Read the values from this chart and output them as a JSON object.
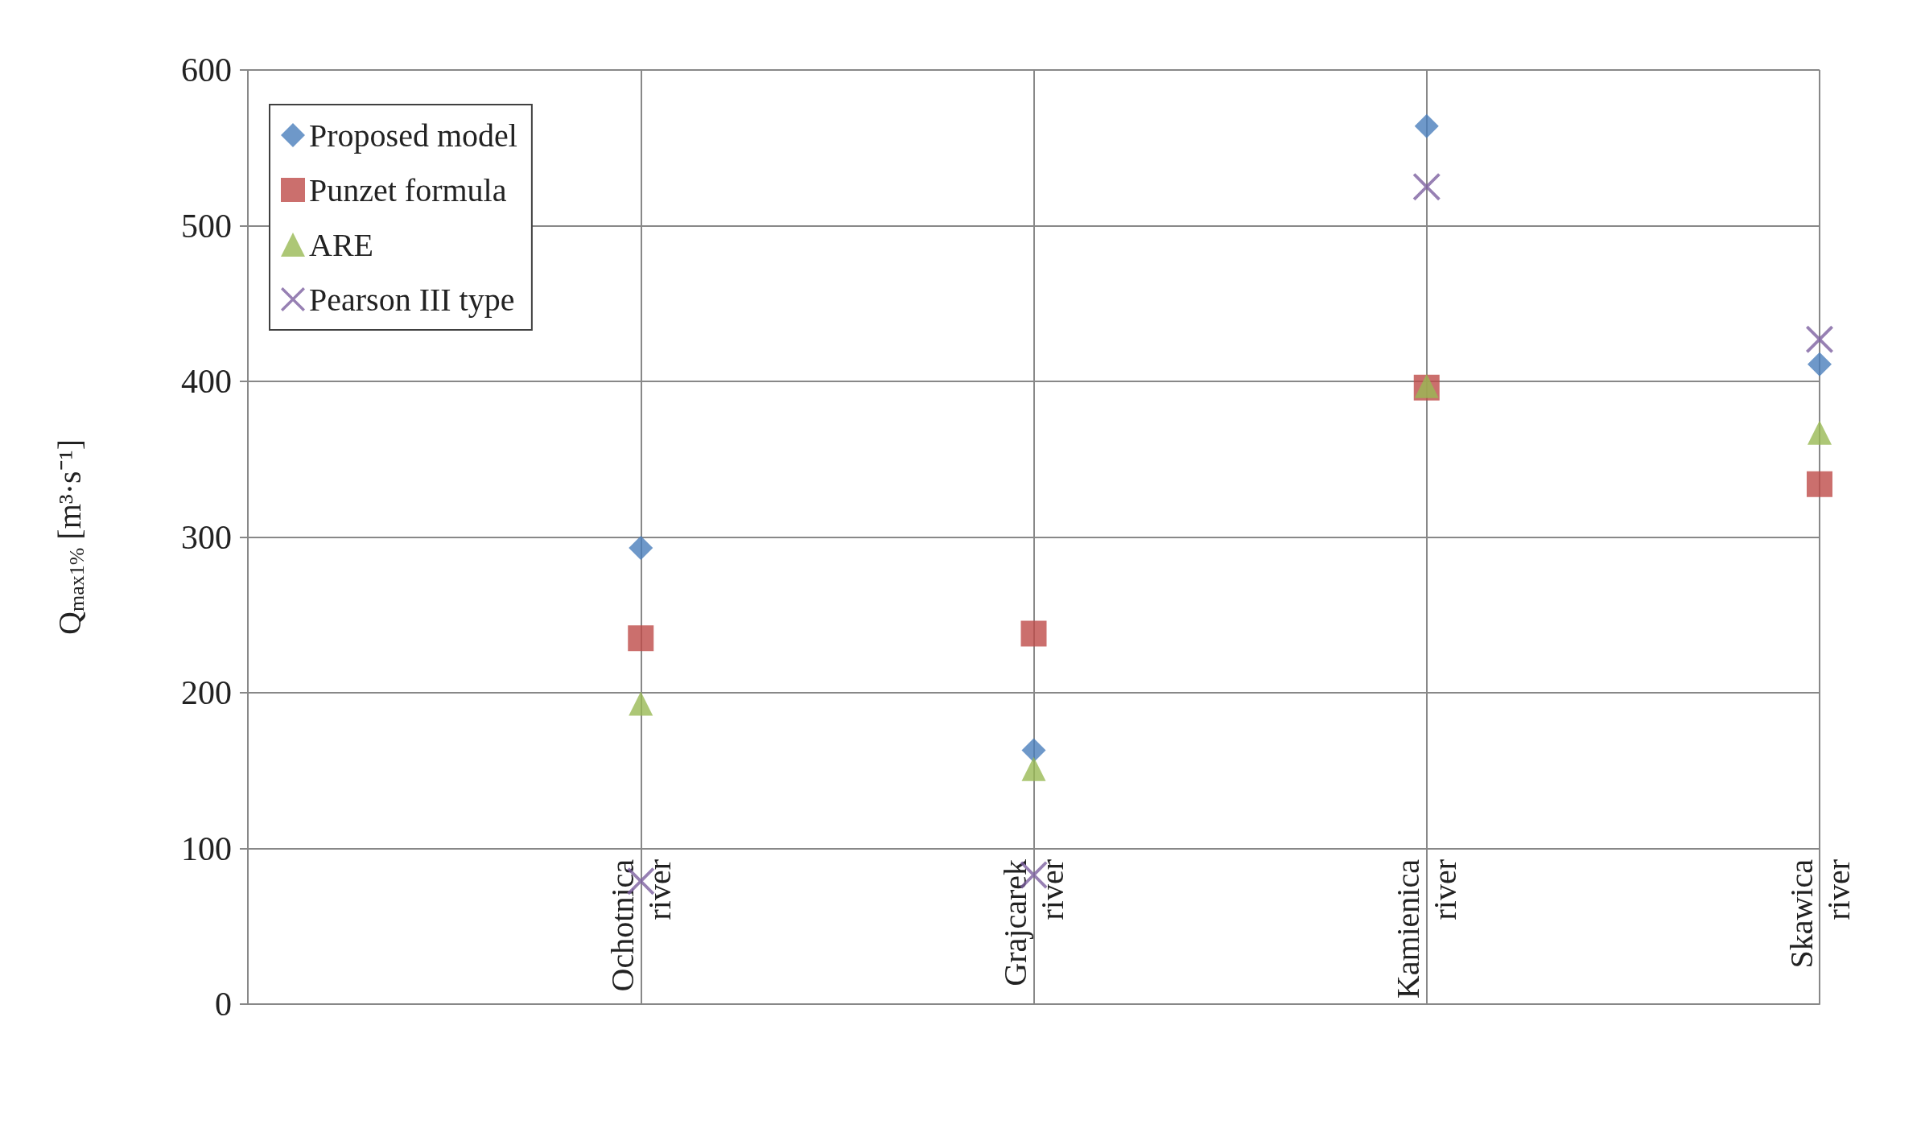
{
  "chart_data": {
    "type": "scatter",
    "ylabel": "Q$_{max1%}$ [m³·s⁻¹]",
    "categories": [
      null,
      "Ochotnica river",
      "Grajcarek river",
      "Kamienica river",
      "Skawica river"
    ],
    "series": [
      {
        "name": "Proposed model",
        "color": "#4a7ebb",
        "marker": "diamond",
        "values": [
          null,
          293,
          163,
          564,
          411
        ]
      },
      {
        "name": "Punzet formula",
        "color": "#be4b48",
        "marker": "square",
        "values": [
          null,
          235,
          238,
          396,
          334
        ]
      },
      {
        "name": "ARE",
        "color": "#98b954",
        "marker": "triangle",
        "values": [
          null,
          193,
          151,
          397,
          367
        ]
      },
      {
        "name": "Pearson III type",
        "color": "#7d60a0",
        "marker": "cross",
        "values": [
          null,
          79,
          83,
          525,
          427
        ]
      }
    ],
    "ylim": [
      0,
      600
    ],
    "yticks": [
      0,
      100,
      200,
      300,
      400,
      500,
      600
    ],
    "grid": true,
    "legend": "top left"
  }
}
